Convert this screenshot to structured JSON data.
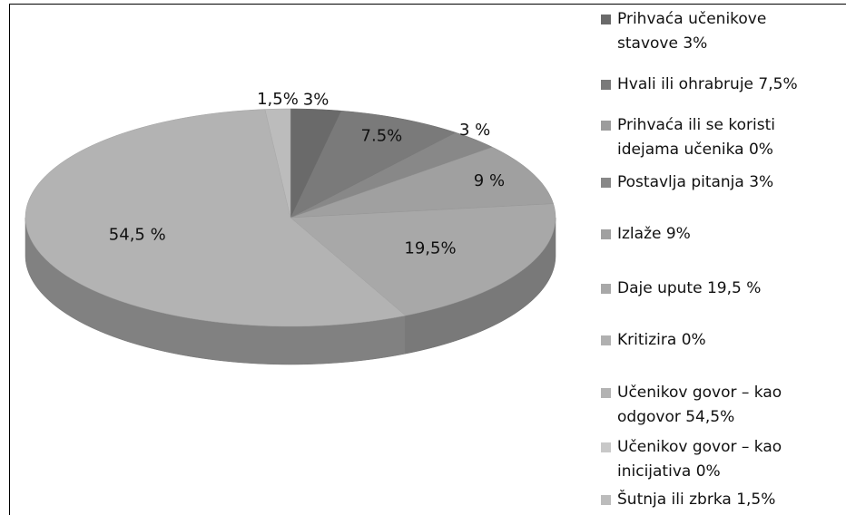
{
  "chart_data": {
    "type": "pie",
    "categories": [
      "Prihvaća učenikove stavove 3%",
      "Hvali ili ohrabruje 7,5%",
      "Prihvaća ili se koristi idejama učenika 0%",
      "Postavlja pitanja 3%",
      "Izlaže 9%",
      "Daje upute 19,5 %",
      "Kritizira 0%",
      "Učenikov govor – kao odgovor 54,5%",
      "Učenikov govor – kao inicijativa 0%",
      "Šutnja ili zbrka 1,5%"
    ],
    "values": [
      3,
      7.5,
      0,
      3,
      9,
      19.5,
      0,
      54.5,
      0,
      1.5
    ],
    "value_labels": [
      "3%",
      "7.5%",
      null,
      "3 %",
      "9 %",
      "19,5%",
      null,
      "54,5 %",
      null,
      "1,5%"
    ],
    "colors": [
      "#6a6a6a",
      "#7a7a7a",
      "#9c9c9c",
      "#888888",
      "#a0a0a0",
      "#a8a8a8",
      "#b0b0b0",
      "#b3b3b3",
      "#c8c8c8",
      "#bcbcbc"
    ],
    "legend": "right"
  }
}
